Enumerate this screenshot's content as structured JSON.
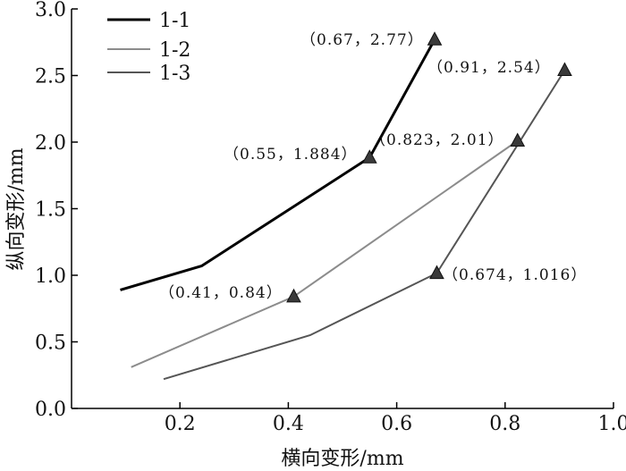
{
  "chart_data": {
    "type": "line",
    "xlabel": "横向变形/mm",
    "ylabel": "纵向变形/mm",
    "xlim": [
      0,
      1.0
    ],
    "ylim": [
      0,
      3.0
    ],
    "x_ticks": [
      "0.2",
      "0.4",
      "0.6",
      "0.8",
      "1.0"
    ],
    "y_ticks": [
      "0.0",
      "0.5",
      "1.0",
      "1.5",
      "2.0",
      "2.5",
      "3.0"
    ],
    "legend_position": "top-left",
    "series": [
      {
        "name": "1-1",
        "color": "#000000",
        "points": [
          [
            0.09,
            0.89
          ],
          [
            0.24,
            1.07
          ],
          [
            0.55,
            1.884
          ],
          [
            0.67,
            2.77
          ]
        ],
        "markers": [
          [
            0.55,
            1.884
          ],
          [
            0.67,
            2.77
          ]
        ]
      },
      {
        "name": "1-2",
        "color": "#8c8c8c",
        "points": [
          [
            0.11,
            0.31
          ],
          [
            0.41,
            0.84
          ],
          [
            0.823,
            2.01
          ]
        ],
        "markers": [
          [
            0.41,
            0.84
          ],
          [
            0.823,
            2.01
          ]
        ]
      },
      {
        "name": "1-3",
        "color": "#555555",
        "points": [
          [
            0.17,
            0.22
          ],
          [
            0.44,
            0.55
          ],
          [
            0.674,
            1.016
          ],
          [
            0.91,
            2.54
          ]
        ],
        "markers": [
          [
            0.674,
            1.016
          ],
          [
            0.91,
            2.54
          ]
        ]
      }
    ],
    "annotations": [
      "（0.67，2.77）",
      "（0.91，2.54）",
      "（0.55，1.884）",
      "（0.823，2.01）",
      "（0.41，0.84）",
      "（0.674，1.016）"
    ]
  }
}
